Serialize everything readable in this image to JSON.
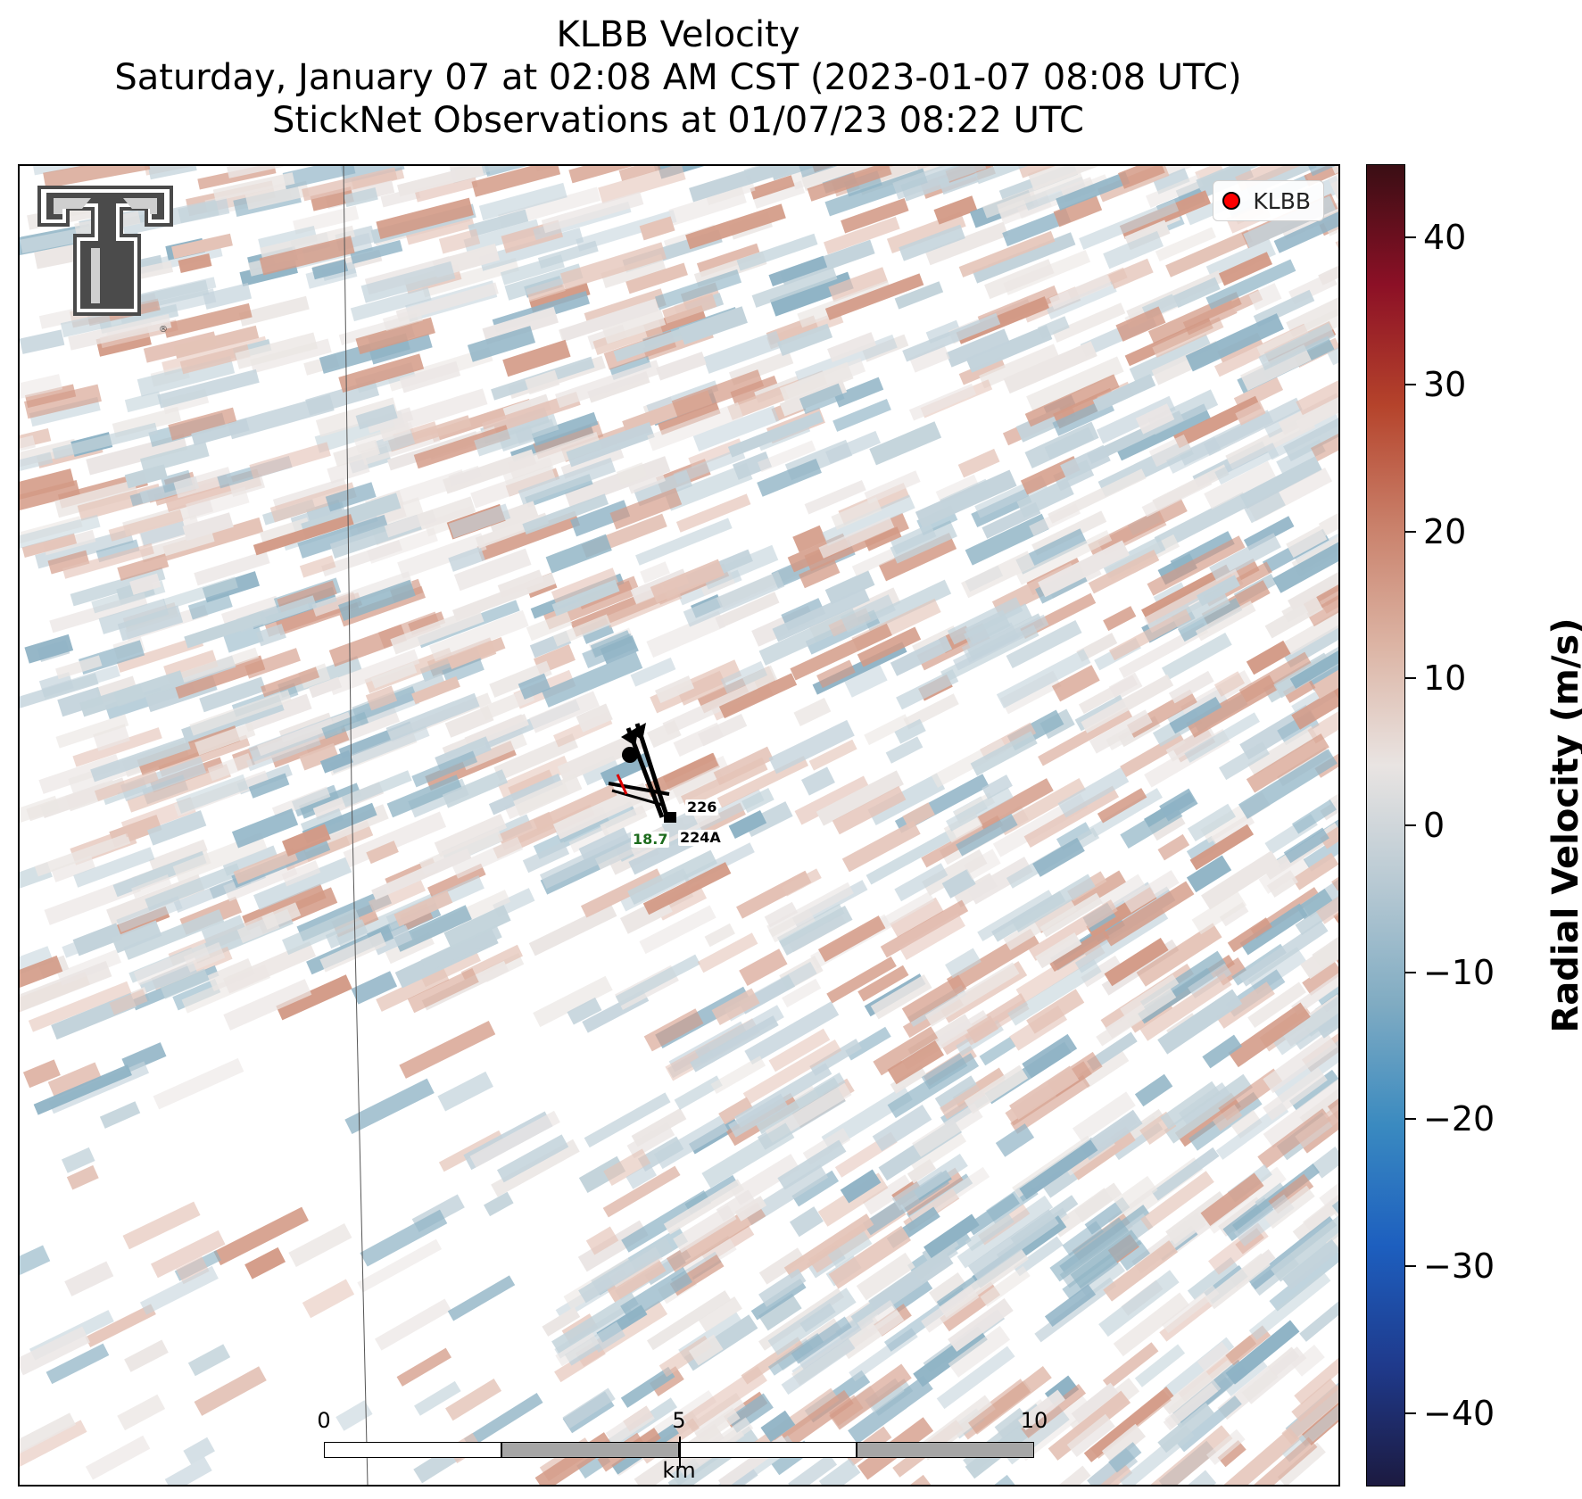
{
  "title": {
    "line1": "KLBB Velocity",
    "line2": "Saturday, January 07 at 02:08 AM CST (2023-01-07 08:08 UTC)",
    "line3": "StickNet Observations at 01/07/23 08:22 UTC"
  },
  "legend": {
    "label": "KLBB",
    "marker_color": "#ff0000"
  },
  "logo": {
    "name": "texas-tech-double-t-logo",
    "text": "TT"
  },
  "colorbar": {
    "label": "Radial Velocity (m/s)",
    "min": -45,
    "max": 45,
    "ticks": [
      {
        "value": 40,
        "label": "40"
      },
      {
        "value": 30,
        "label": "30"
      },
      {
        "value": 20,
        "label": "20"
      },
      {
        "value": 10,
        "label": "10"
      },
      {
        "value": 0,
        "label": "0"
      },
      {
        "value": -10,
        "label": "−10"
      },
      {
        "value": -20,
        "label": "−20"
      },
      {
        "value": -30,
        "label": "−30"
      },
      {
        "value": -40,
        "label": "−40"
      }
    ],
    "colors": [
      "#1c1a40",
      "#1f3a8c",
      "#1d5fbf",
      "#3a8ac0",
      "#7fabc2",
      "#b7c9d3",
      "#e9e4e2",
      "#dcb4a4",
      "#c9806a",
      "#b5432b",
      "#8c1026",
      "#3a0e14"
    ]
  },
  "scale_bar": {
    "labels": [
      "0",
      "5",
      "10"
    ],
    "unit": "km"
  },
  "stations": [
    {
      "id": "226",
      "value": "",
      "wind_speed": "",
      "note": "northwest station"
    },
    {
      "id": "224A",
      "value": "18.7",
      "note": "southeast station"
    }
  ],
  "chart_data": {
    "type": "heatmap",
    "title": "KLBB Velocity",
    "subtitle": "Saturday, January 07 at 02:08 AM CST (2023-01-07 08:08 UTC) / StickNet Observations at 01/07/23 08:22 UTC",
    "colorbar_label": "Radial Velocity (m/s)",
    "value_range": [
      -45,
      45
    ],
    "field_range_shown": [
      -15,
      12
    ],
    "colors": {
      "negative_blue": "#8fb3c5",
      "light_blue": "#c3d3db",
      "neutral": "#ebe6e4",
      "light_red": "#e4c3b7",
      "positive_red": "#d39a86"
    }
  }
}
